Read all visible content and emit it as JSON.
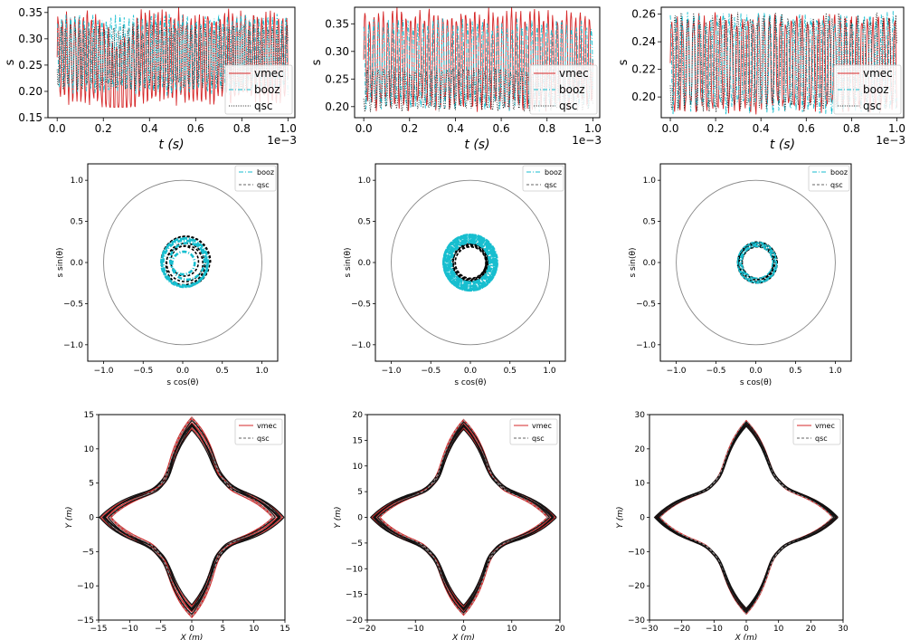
{
  "chart_data": [
    {
      "panel": "top-left",
      "type": "line",
      "xlabel": "t (s)",
      "ylabel": "s",
      "x_offset_label": "1e−3",
      "xlim": [
        0,
        1
      ],
      "ylim": [
        0.15,
        0.36
      ],
      "xticks": [
        "0.0",
        "0.2",
        "0.4",
        "0.6",
        "0.8",
        "1.0"
      ],
      "yticks": [
        "0.15",
        "0.20",
        "0.25",
        "0.30",
        "0.35"
      ],
      "legend": {
        "placement": "lower-right",
        "entries": [
          "vmec",
          "booz",
          "qsc"
        ]
      },
      "series": [
        {
          "name": "vmec",
          "color": "#d62728",
          "style": "solid",
          "range": [
            0.17,
            0.36
          ],
          "shape": "oscillation dipping near t=0.25"
        },
        {
          "name": "booz",
          "color": "#17becf",
          "style": "dashdot",
          "range": [
            0.19,
            0.35
          ]
        },
        {
          "name": "qsc",
          "color": "#222222",
          "style": "dotted",
          "range": [
            0.2,
            0.33
          ]
        }
      ]
    },
    {
      "panel": "top-middle",
      "type": "line",
      "xlabel": "t (s)",
      "ylabel": "s",
      "x_offset_label": "1e−3",
      "xlim": [
        0,
        1
      ],
      "ylim": [
        0.18,
        0.38
      ],
      "xticks": [
        "0.0",
        "0.2",
        "0.4",
        "0.6",
        "0.8",
        "1.0"
      ],
      "yticks": [
        "0.20",
        "0.25",
        "0.30",
        "0.35"
      ],
      "legend": {
        "placement": "lower-right",
        "entries": [
          "vmec",
          "booz",
          "qsc"
        ]
      },
      "series": [
        {
          "name": "vmec",
          "color": "#d62728",
          "style": "solid",
          "range": [
            0.19,
            0.38
          ]
        },
        {
          "name": "booz",
          "color": "#17becf",
          "style": "dashdot",
          "range": [
            0.19,
            0.36
          ]
        },
        {
          "name": "qsc",
          "color": "#222222",
          "style": "dotted",
          "range": [
            0.19,
            0.27
          ]
        }
      ]
    },
    {
      "panel": "top-right",
      "type": "line",
      "xlabel": "t (s)",
      "ylabel": "s",
      "x_offset_label": "1e−3",
      "xlim": [
        0,
        1
      ],
      "ylim": [
        0.185,
        0.265
      ],
      "xticks": [
        "0.0",
        "0.2",
        "0.4",
        "0.6",
        "0.8",
        "1.0"
      ],
      "yticks": [
        "0.20",
        "0.22",
        "0.24",
        "0.26"
      ],
      "legend": {
        "placement": "lower-right",
        "entries": [
          "vmec",
          "booz",
          "qsc"
        ]
      },
      "series": [
        {
          "name": "vmec",
          "color": "#d62728",
          "style": "solid",
          "range": [
            0.187,
            0.262
          ]
        },
        {
          "name": "booz",
          "color": "#17becf",
          "style": "dashdot",
          "range": [
            0.187,
            0.263
          ]
        },
        {
          "name": "qsc",
          "color": "#222222",
          "style": "dotted",
          "range": [
            0.187,
            0.262
          ]
        }
      ]
    },
    {
      "panel": "middle-left",
      "type": "line",
      "xlabel": "s cos(θ)",
      "ylabel": "s sin(θ)",
      "xlim": [
        -1.2,
        1.2
      ],
      "ylim": [
        -1.2,
        1.2
      ],
      "ticks": [
        "−1.0",
        "−0.5",
        "0.0",
        "0.5",
        "1.0"
      ],
      "legend": {
        "placement": "top-right",
        "entries": [
          "booz",
          "qsc"
        ]
      },
      "series": [
        {
          "name": "booz",
          "color": "#17becf",
          "style": "dashdot",
          "shape": "spiral",
          "radius_range": [
            0.15,
            0.32
          ]
        },
        {
          "name": "qsc",
          "color": "#222222",
          "style": "dashed",
          "shape": "spiral",
          "radius_range": [
            0.18,
            0.3
          ]
        }
      ],
      "reference_circle_radius": 1.0
    },
    {
      "panel": "middle-center",
      "type": "line",
      "xlabel": "s cos(θ)",
      "ylabel": "s sin(θ)",
      "xlim": [
        -1.2,
        1.2
      ],
      "ylim": [
        -1.2,
        1.2
      ],
      "ticks": [
        "−1.0",
        "−0.5",
        "0.0",
        "0.5",
        "1.0"
      ],
      "legend": {
        "placement": "top-right",
        "entries": [
          "booz",
          "qsc"
        ]
      },
      "series": [
        {
          "name": "booz",
          "color": "#17becf",
          "style": "dashdot",
          "shape": "band",
          "radius_range": [
            0.24,
            0.34
          ]
        },
        {
          "name": "qsc",
          "color": "#222222",
          "style": "dashed",
          "shape": "ring",
          "radius_range": [
            0.19,
            0.23
          ]
        }
      ],
      "reference_circle_radius": 1.0
    },
    {
      "panel": "middle-right",
      "type": "line",
      "xlabel": "s cos(θ)",
      "ylabel": "s sin(θ)",
      "xlim": [
        -1.2,
        1.2
      ],
      "ylim": [
        -1.2,
        1.2
      ],
      "ticks": [
        "−1.0",
        "−0.5",
        "0.0",
        "0.5",
        "1.0"
      ],
      "legend": {
        "placement": "top-right",
        "entries": [
          "booz",
          "qsc"
        ]
      },
      "series": [
        {
          "name": "booz",
          "color": "#17becf",
          "style": "dashdot",
          "shape": "ring",
          "radius_range": [
            0.19,
            0.25
          ]
        },
        {
          "name": "qsc",
          "color": "#222222",
          "style": "dashed",
          "shape": "ring",
          "radius_range": [
            0.19,
            0.25
          ]
        }
      ],
      "reference_circle_radius": 1.0
    },
    {
      "panel": "bottom-left",
      "type": "line",
      "xlabel": "X (m)",
      "ylabel": "Y (m)",
      "xlim": [
        -15,
        15
      ],
      "ylim": [
        -15,
        15
      ],
      "ticks": [
        "−15",
        "−10",
        "−5",
        "0",
        "5",
        "10",
        "15"
      ],
      "legend": {
        "placement": "top-right",
        "entries": [
          "vmec",
          "qsc"
        ]
      },
      "series": [
        {
          "name": "vmec",
          "color": "#d62728",
          "style": "solid",
          "shape": "square orbit",
          "extent": 13.8
        },
        {
          "name": "qsc",
          "color": "#222222",
          "style": "dashed",
          "shape": "square orbit",
          "extent": 13.8
        }
      ]
    },
    {
      "panel": "bottom-center",
      "type": "line",
      "xlabel": "X (m)",
      "ylabel": "Y (m)",
      "xlim": [
        -20,
        20
      ],
      "ylim": [
        -20,
        20
      ],
      "ticks": [
        "−20",
        "−15",
        "−10",
        "−5",
        "0",
        "5",
        "10",
        "15",
        "20"
      ],
      "xticks": [
        "−20",
        "−10",
        "0",
        "10",
        "20"
      ],
      "legend": {
        "placement": "top-right",
        "entries": [
          "vmec",
          "qsc"
        ]
      },
      "series": [
        {
          "name": "vmec",
          "color": "#d62728",
          "style": "solid",
          "shape": "square orbit",
          "extent": 18.2
        },
        {
          "name": "qsc",
          "color": "#222222",
          "style": "dashed",
          "shape": "square orbit",
          "extent": 18.2
        }
      ]
    },
    {
      "panel": "bottom-right",
      "type": "line",
      "xlabel": "X (m)",
      "ylabel": "Y (m)",
      "xlim": [
        -30,
        30
      ],
      "ylim": [
        -30,
        30
      ],
      "ticks": [
        "−30",
        "−20",
        "−10",
        "0",
        "10",
        "20",
        "30"
      ],
      "legend": {
        "placement": "top-right",
        "entries": [
          "vmec",
          "qsc"
        ]
      },
      "series": [
        {
          "name": "vmec",
          "color": "#d62728",
          "style": "solid",
          "shape": "square orbit",
          "extent": 27.5
        },
        {
          "name": "qsc",
          "color": "#222222",
          "style": "dashed",
          "shape": "square orbit",
          "extent": 27.5
        }
      ]
    }
  ]
}
